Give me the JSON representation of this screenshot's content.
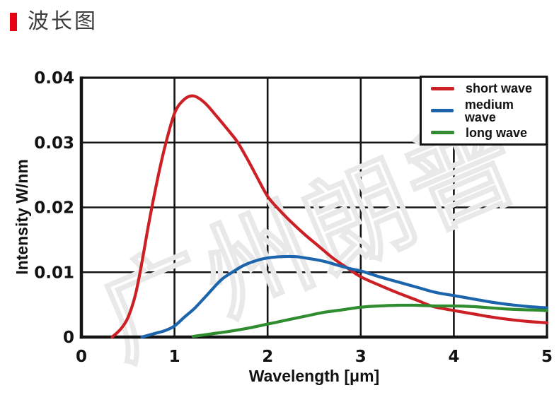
{
  "page": {
    "title": "波长图",
    "accent_color": "#e60012",
    "title_color": "#3c3c3c"
  },
  "chart_data": {
    "type": "line",
    "title": "波长图",
    "xlabel": "Wavelength [μm]",
    "ylabel": "Intensity W/nm",
    "xlim": [
      0,
      5
    ],
    "ylim": [
      0,
      0.04
    ],
    "x_ticks": [
      0,
      1,
      2,
      3,
      4,
      5
    ],
    "x_tick_labels": [
      "0",
      "1",
      "2",
      "3",
      "4",
      "5"
    ],
    "y_ticks": [
      0,
      0.01,
      0.02,
      0.03,
      0.04
    ],
    "y_tick_labels": [
      "0",
      "0.01",
      "0.02",
      "0.03",
      "0.04"
    ],
    "grid": true,
    "legend_position": "top-right",
    "watermark": "广州朗普",
    "series": [
      {
        "name": "short wave",
        "color": "#cc2026",
        "peak": {
          "x": 1.2,
          "y": 0.0372
        },
        "points": [
          [
            0.33,
            0
          ],
          [
            0.42,
            0.0012
          ],
          [
            0.5,
            0.003
          ],
          [
            0.58,
            0.0065
          ],
          [
            0.65,
            0.0115
          ],
          [
            0.73,
            0.018
          ],
          [
            0.82,
            0.0245
          ],
          [
            0.9,
            0.0295
          ],
          [
            1.0,
            0.0345
          ],
          [
            1.1,
            0.0366
          ],
          [
            1.2,
            0.0372
          ],
          [
            1.32,
            0.0362
          ],
          [
            1.45,
            0.0341
          ],
          [
            1.6,
            0.0315
          ],
          [
            1.68,
            0.03
          ],
          [
            1.8,
            0.027
          ],
          [
            1.9,
            0.0243
          ],
          [
            2.0,
            0.0217
          ],
          [
            2.1,
            0.02
          ],
          [
            2.25,
            0.0178
          ],
          [
            2.4,
            0.0158
          ],
          [
            2.55,
            0.014
          ],
          [
            2.7,
            0.0122
          ],
          [
            2.85,
            0.0107
          ],
          [
            3.0,
            0.0093
          ],
          [
            3.2,
            0.008
          ],
          [
            3.4,
            0.0068
          ],
          [
            3.6,
            0.0057
          ],
          [
            3.78,
            0.0047
          ],
          [
            4.0,
            0.0041
          ],
          [
            4.2,
            0.0036
          ],
          [
            4.4,
            0.0031
          ],
          [
            4.6,
            0.0027
          ],
          [
            4.8,
            0.0024
          ],
          [
            5.0,
            0.0022
          ]
        ]
      },
      {
        "name": "medium wave",
        "color": "#1c64ab",
        "peak": {
          "x": 2.2,
          "y": 0.0124
        },
        "points": [
          [
            0.65,
            0
          ],
          [
            0.8,
            0.0006
          ],
          [
            0.9,
            0.001
          ],
          [
            1.0,
            0.0017
          ],
          [
            1.1,
            0.003
          ],
          [
            1.22,
            0.0045
          ],
          [
            1.35,
            0.0065
          ],
          [
            1.5,
            0.0088
          ],
          [
            1.62,
            0.01
          ],
          [
            1.75,
            0.0111
          ],
          [
            1.88,
            0.0118
          ],
          [
            2.0,
            0.0122
          ],
          [
            2.15,
            0.0124
          ],
          [
            2.3,
            0.0124
          ],
          [
            2.45,
            0.0121
          ],
          [
            2.6,
            0.0117
          ],
          [
            2.75,
            0.0111
          ],
          [
            2.9,
            0.0105
          ],
          [
            3.0,
            0.0102
          ],
          [
            3.2,
            0.0093
          ],
          [
            3.4,
            0.0085
          ],
          [
            3.6,
            0.0077
          ],
          [
            3.8,
            0.0069
          ],
          [
            4.0,
            0.0064
          ],
          [
            4.2,
            0.0059
          ],
          [
            4.4,
            0.0054
          ],
          [
            4.6,
            0.005
          ],
          [
            4.8,
            0.0047
          ],
          [
            5.0,
            0.0045
          ]
        ]
      },
      {
        "name": "long wave",
        "color": "#2f8c2f",
        "peak": {
          "x": 3.4,
          "y": 0.0049
        },
        "points": [
          [
            1.2,
            0.0001
          ],
          [
            1.4,
            0.0005
          ],
          [
            1.6,
            0.0009
          ],
          [
            1.8,
            0.0014
          ],
          [
            2.0,
            0.002
          ],
          [
            2.2,
            0.0026
          ],
          [
            2.4,
            0.0032
          ],
          [
            2.6,
            0.0038
          ],
          [
            2.8,
            0.0042
          ],
          [
            3.0,
            0.0046
          ],
          [
            3.2,
            0.0048
          ],
          [
            3.4,
            0.0049
          ],
          [
            3.6,
            0.0049
          ],
          [
            3.8,
            0.0048
          ],
          [
            4.0,
            0.0048
          ],
          [
            4.2,
            0.0047
          ],
          [
            4.4,
            0.0045
          ],
          [
            4.6,
            0.0043
          ],
          [
            4.8,
            0.0042
          ],
          [
            5.0,
            0.0041
          ]
        ]
      }
    ]
  }
}
